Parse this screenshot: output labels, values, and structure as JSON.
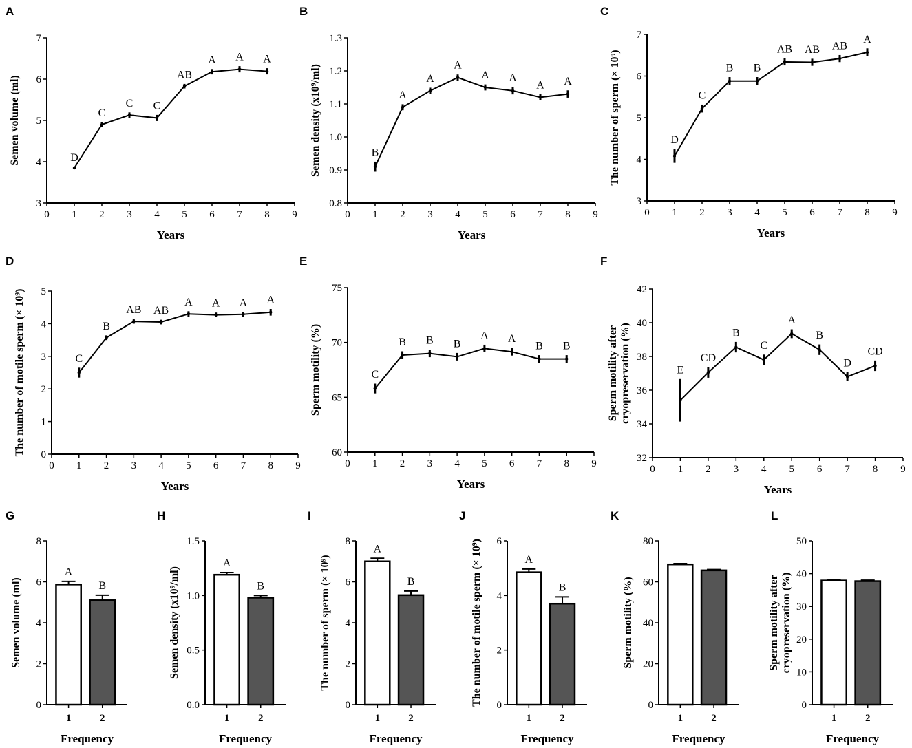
{
  "chart_data": [
    {
      "panel": "A",
      "type": "line",
      "xlabel": "Years",
      "ylabel": "Semen volume (ml)",
      "xlim": [
        0,
        9
      ],
      "xticks": [
        0,
        1,
        2,
        3,
        4,
        5,
        6,
        7,
        8,
        9
      ],
      "ylim": [
        3,
        7
      ],
      "yticks": [
        3,
        4,
        5,
        6,
        7
      ],
      "x": [
        1,
        2,
        3,
        4,
        5,
        6,
        7,
        8
      ],
      "values": [
        3.85,
        4.9,
        5.13,
        5.06,
        5.83,
        6.18,
        6.24,
        6.19
      ],
      "errors": [
        0.0,
        0.03,
        0.04,
        0.05,
        0.03,
        0.04,
        0.05,
        0.05
      ],
      "letters": [
        "D",
        "C",
        "C",
        "C",
        "AB",
        "A",
        "A",
        "A"
      ]
    },
    {
      "panel": "B",
      "type": "line",
      "xlabel": "Years",
      "ylabel": "Semen density (x10⁹/ml)",
      "xlim": [
        0,
        9
      ],
      "xticks": [
        0,
        1,
        2,
        3,
        4,
        5,
        6,
        7,
        8,
        9
      ],
      "ylim": [
        0.8,
        1.3
      ],
      "yticks": [
        "0.8",
        "0.9",
        "1.0",
        "1.1",
        "1.2",
        "1.3"
      ],
      "x": [
        1,
        2,
        3,
        4,
        5,
        6,
        7,
        8
      ],
      "values": [
        0.91,
        1.09,
        1.14,
        1.18,
        1.15,
        1.14,
        1.12,
        1.13
      ],
      "errors": [
        0.012,
        0.006,
        0.006,
        0.006,
        0.006,
        0.008,
        0.006,
        0.008
      ],
      "letters": [
        "B",
        "A",
        "A",
        "A",
        "A",
        "A",
        "A",
        "A"
      ]
    },
    {
      "panel": "C",
      "type": "line",
      "xlabel": "Years",
      "ylabel": "The number of sperm (× 10⁹)",
      "xlim": [
        0,
        9
      ],
      "xticks": [
        0,
        1,
        2,
        3,
        4,
        5,
        6,
        7,
        8,
        9
      ],
      "ylim": [
        3,
        7
      ],
      "yticks": [
        3,
        4,
        5,
        6,
        7
      ],
      "x": [
        1,
        2,
        3,
        4,
        5,
        6,
        7,
        8
      ],
      "values": [
        4.08,
        5.22,
        5.88,
        5.88,
        6.34,
        6.33,
        6.42,
        6.57
      ],
      "errors": [
        0.14,
        0.07,
        0.07,
        0.07,
        0.06,
        0.06,
        0.06,
        0.07
      ],
      "letters": [
        "D",
        "C",
        "B",
        "B",
        "AB",
        "AB",
        "AB",
        "A"
      ]
    },
    {
      "panel": "D",
      "type": "line",
      "xlabel": "Years",
      "ylabel": "The number of motile sperm (× 10⁹)",
      "xlim": [
        0,
        9
      ],
      "xticks": [
        0,
        1,
        2,
        3,
        4,
        5,
        6,
        7,
        8,
        9
      ],
      "ylim": [
        0,
        5
      ],
      "yticks": [
        0,
        1,
        2,
        3,
        4,
        5
      ],
      "x": [
        1,
        2,
        3,
        4,
        5,
        6,
        7,
        8
      ],
      "values": [
        2.5,
        3.57,
        4.07,
        4.05,
        4.3,
        4.27,
        4.29,
        4.35
      ],
      "errors": [
        0.12,
        0.04,
        0.04,
        0.04,
        0.05,
        0.04,
        0.04,
        0.07
      ],
      "letters": [
        "C",
        "B",
        "AB",
        "AB",
        "A",
        "A",
        "A",
        "A"
      ]
    },
    {
      "panel": "E",
      "type": "line",
      "xlabel": "Years",
      "ylabel": "Sperm motility (%)",
      "xlim": [
        0,
        9
      ],
      "xticks": [
        0,
        1,
        2,
        3,
        4,
        5,
        6,
        7,
        8,
        9
      ],
      "ylim": [
        60,
        75
      ],
      "yticks": [
        60,
        65,
        70,
        75
      ],
      "x": [
        1,
        2,
        3,
        4,
        5,
        6,
        7,
        8
      ],
      "values": [
        65.8,
        68.85,
        69.0,
        68.7,
        69.45,
        69.15,
        68.5,
        68.5
      ],
      "errors": [
        0.35,
        0.25,
        0.25,
        0.25,
        0.25,
        0.25,
        0.25,
        0.25
      ],
      "letters": [
        "C",
        "B",
        "B",
        "B",
        "A",
        "A",
        "B",
        "B"
      ]
    },
    {
      "panel": "F",
      "type": "line",
      "xlabel": "Years",
      "ylabel": "Sperm motility after cryopreservation (%)",
      "ylabel_lines": [
        "Sperm motility after",
        "cryopreservation (%)"
      ],
      "xlim": [
        0,
        9
      ],
      "xticks": [
        0,
        1,
        2,
        3,
        4,
        5,
        6,
        7,
        8,
        9
      ],
      "ylim": [
        32,
        42
      ],
      "yticks": [
        32,
        34,
        36,
        38,
        40,
        42
      ],
      "x": [
        1,
        2,
        3,
        4,
        5,
        6,
        7,
        8
      ],
      "values": [
        35.4,
        37.05,
        38.55,
        37.8,
        39.35,
        38.4,
        36.8,
        37.45
      ],
      "errors": [
        1.2,
        0.25,
        0.25,
        0.25,
        0.2,
        0.25,
        0.2,
        0.25
      ],
      "letters": [
        "E",
        "CD",
        "B",
        "C",
        "A",
        "B",
        "D",
        "CD"
      ]
    },
    {
      "panel": "G",
      "type": "bar",
      "xlabel": "Frequency",
      "ylabel": "Semen volume (ml)",
      "categories": [
        "1",
        "2"
      ],
      "ylim": [
        0,
        8
      ],
      "yticks": [
        0,
        2,
        4,
        6,
        8
      ],
      "values": [
        5.87,
        5.1
      ],
      "errors": [
        0.15,
        0.25
      ],
      "letters": [
        "A",
        "B"
      ],
      "fills": [
        "#ffffff",
        "#555555"
      ]
    },
    {
      "panel": "H",
      "type": "bar",
      "xlabel": "Frequency",
      "ylabel": "Semen density (x10⁹/ml)",
      "categories": [
        "1",
        "2"
      ],
      "ylim": [
        0,
        1.5
      ],
      "yticks": [
        "0.0",
        "0.5",
        "1.0",
        "1.5"
      ],
      "values": [
        1.19,
        0.98
      ],
      "errors": [
        0.02,
        0.02
      ],
      "letters": [
        "A",
        "B"
      ],
      "fills": [
        "#ffffff",
        "#555555"
      ]
    },
    {
      "panel": "I",
      "type": "bar",
      "xlabel": "Frequency",
      "ylabel": "The number of sperm (× 10⁹)",
      "categories": [
        "1",
        "2"
      ],
      "ylim": [
        0,
        8
      ],
      "yticks": [
        0,
        2,
        4,
        6,
        8
      ],
      "values": [
        7.0,
        5.35
      ],
      "errors": [
        0.15,
        0.2
      ],
      "letters": [
        "A",
        "B"
      ],
      "fills": [
        "#ffffff",
        "#555555"
      ]
    },
    {
      "panel": "J",
      "type": "bar",
      "xlabel": "Frequency",
      "ylabel": "The number of motile sperm (× 10⁹)",
      "categories": [
        "1",
        "2"
      ],
      "ylim": [
        0,
        6
      ],
      "yticks": [
        0,
        2,
        4,
        6
      ],
      "values": [
        4.85,
        3.7
      ],
      "errors": [
        0.12,
        0.25
      ],
      "letters": [
        "A",
        "B"
      ],
      "fills": [
        "#ffffff",
        "#555555"
      ]
    },
    {
      "panel": "K",
      "type": "bar",
      "xlabel": "Frequency",
      "ylabel": "Sperm motility (%)",
      "categories": [
        "1",
        "2"
      ],
      "ylim": [
        0,
        80
      ],
      "yticks": [
        0,
        20,
        40,
        60,
        80
      ],
      "values": [
        68.5,
        65.6
      ],
      "errors": [
        0.4,
        0.4
      ],
      "letters": [
        "",
        ""
      ],
      "fills": [
        "#ffffff",
        "#555555"
      ]
    },
    {
      "panel": "L",
      "type": "bar",
      "xlabel": "Frequency",
      "ylabel": "Sperm motility after cryopreservation (%)",
      "ylabel_lines": [
        "Sperm motility after",
        "cryopreservation (%)"
      ],
      "categories": [
        "1",
        "2"
      ],
      "ylim": [
        0,
        50
      ],
      "yticks": [
        0,
        10,
        20,
        30,
        40,
        50
      ],
      "values": [
        37.9,
        37.7
      ],
      "errors": [
        0.3,
        0.3
      ],
      "letters": [
        "",
        ""
      ],
      "fills": [
        "#ffffff",
        "#555555"
      ]
    }
  ]
}
